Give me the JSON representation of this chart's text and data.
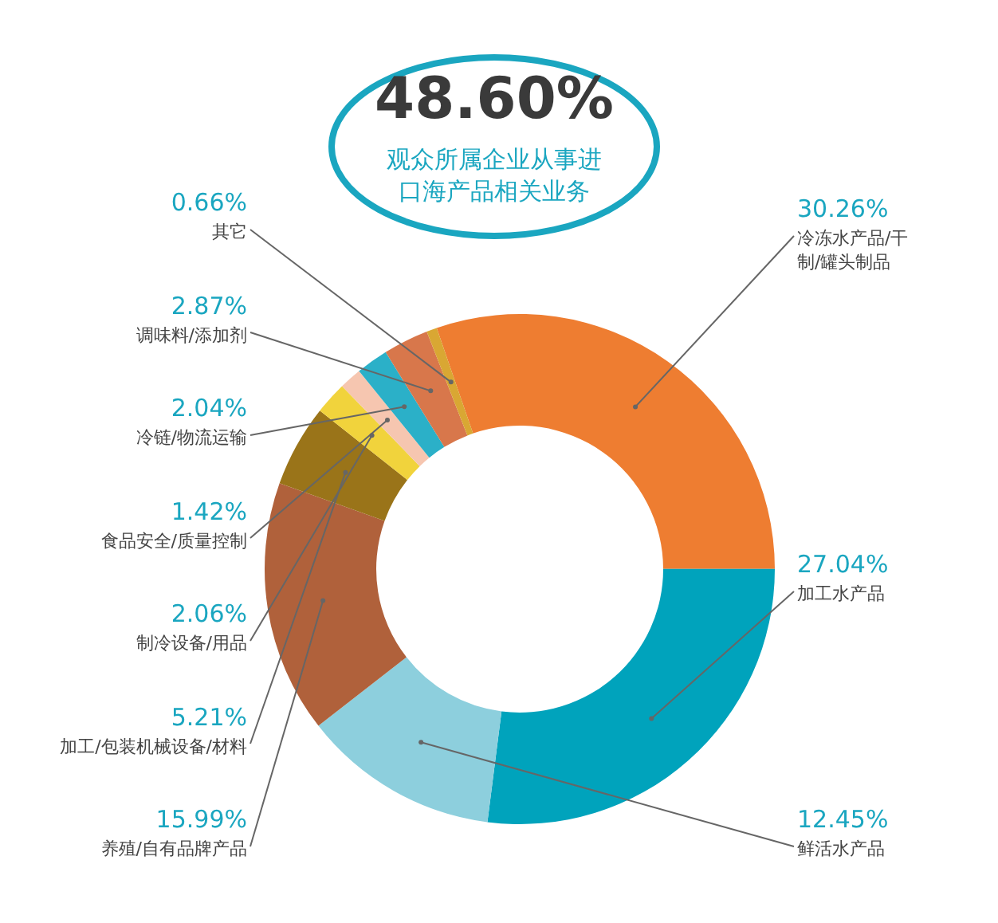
{
  "chart_data": {
    "type": "donut",
    "title": "48.60%",
    "subtitle": "观众所属企业从事进口海产品相关业务",
    "categories": [
      "冷冻水产品/干制/罐头制品",
      "加工水产品",
      "鲜活水产品",
      "养殖/自有品牌产品",
      "加工/包装机械设备/材料",
      "制冷设备/用品",
      "食品安全/质量控制",
      "冷链/物流运输",
      "调味料/添加剂",
      "其它"
    ],
    "values": [
      30.26,
      27.04,
      12.45,
      15.99,
      5.21,
      2.06,
      1.42,
      2.04,
      2.87,
      0.66
    ],
    "colors": [
      "#ee7d31",
      "#00a3bc",
      "#8dcfdd",
      "#b0613b",
      "#9a7419",
      "#f1d33c",
      "#f6c6b0",
      "#2bb0c8",
      "#d8774b",
      "#d9a733"
    ],
    "value_labels": [
      "30.26%",
      "27.04%",
      "12.45%",
      "15.99%",
      "5.21%",
      "2.06%",
      "1.42%",
      "2.04%",
      "2.87%",
      "0.66%"
    ]
  }
}
